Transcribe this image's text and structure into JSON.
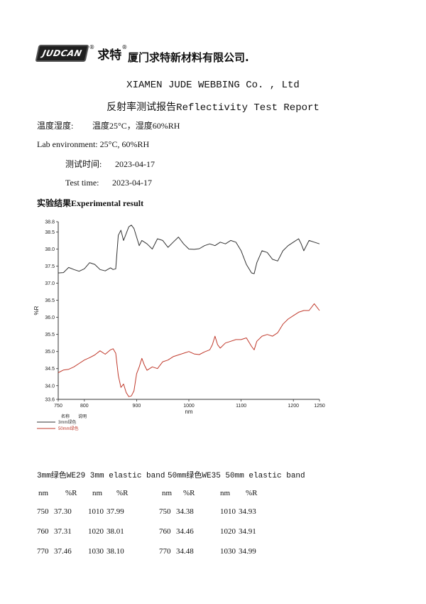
{
  "header": {
    "logo_text": "JUDCAN",
    "logo_cn": "求特",
    "company_cn": "厦门求特新材料有限公司.",
    "company_en": "XIAMEN JUDE WEBBING Co. , Ltd",
    "report_title": "反射率测试报告Reflectivity Test Report"
  },
  "info": {
    "env_cn_label": "温度湿度:",
    "env_cn_value": "温度25°C，湿度60%RH",
    "env_en": "Lab environment:  25°C, 60%RH",
    "date_cn_label": "测试时间:",
    "date_cn_value": "2023-04-17",
    "date_en_label": "Test time:",
    "date_en_value": "2023-04-17",
    "result_heading": "实验结果Experimental result"
  },
  "chart_data": {
    "type": "line",
    "xlabel": "nm",
    "ylabel": "%R",
    "xlim": [
      750,
      1250
    ],
    "ylim": [
      33.6,
      38.8
    ],
    "x_ticks": [
      "750",
      "800",
      "900",
      "1000",
      "1100",
      "1200",
      "1250"
    ],
    "y_ticks": [
      "33.6",
      "34.0",
      "34.5",
      "35.0",
      "35.5",
      "36.0",
      "36.5",
      "37.0",
      "37.5",
      "38.0",
      "38.5",
      "38.8"
    ],
    "legend_header": [
      "名称",
      "说明"
    ],
    "series": [
      {
        "name": "3mm绿色",
        "color": "#333333",
        "points": [
          [
            750,
            37.3
          ],
          [
            760,
            37.31
          ],
          [
            770,
            37.46
          ],
          [
            780,
            37.4
          ],
          [
            790,
            37.35
          ],
          [
            800,
            37.42
          ],
          [
            810,
            37.6
          ],
          [
            820,
            37.55
          ],
          [
            830,
            37.4
          ],
          [
            840,
            37.36
          ],
          [
            850,
            37.45
          ],
          [
            855,
            37.4
          ],
          [
            860,
            37.42
          ],
          [
            865,
            38.4
          ],
          [
            870,
            38.55
          ],
          [
            875,
            38.25
          ],
          [
            880,
            38.45
          ],
          [
            885,
            38.65
          ],
          [
            890,
            38.7
          ],
          [
            895,
            38.6
          ],
          [
            900,
            38.35
          ],
          [
            905,
            38.1
          ],
          [
            910,
            38.25
          ],
          [
            920,
            38.15
          ],
          [
            930,
            38.0
          ],
          [
            940,
            38.3
          ],
          [
            950,
            38.25
          ],
          [
            960,
            38.05
          ],
          [
            970,
            38.2
          ],
          [
            980,
            38.35
          ],
          [
            990,
            38.15
          ],
          [
            1000,
            38.0
          ],
          [
            1010,
            37.99
          ],
          [
            1020,
            38.01
          ],
          [
            1030,
            38.1
          ],
          [
            1040,
            38.15
          ],
          [
            1050,
            38.1
          ],
          [
            1060,
            38.2
          ],
          [
            1070,
            38.15
          ],
          [
            1080,
            38.25
          ],
          [
            1090,
            38.2
          ],
          [
            1100,
            37.95
          ],
          [
            1110,
            37.55
          ],
          [
            1120,
            37.3
          ],
          [
            1125,
            37.28
          ],
          [
            1130,
            37.6
          ],
          [
            1140,
            37.95
          ],
          [
            1150,
            37.9
          ],
          [
            1160,
            37.7
          ],
          [
            1170,
            37.65
          ],
          [
            1180,
            37.95
          ],
          [
            1190,
            38.1
          ],
          [
            1200,
            38.2
          ],
          [
            1210,
            38.3
          ],
          [
            1215,
            38.15
          ],
          [
            1220,
            37.95
          ],
          [
            1230,
            38.25
          ],
          [
            1240,
            38.2
          ],
          [
            1250,
            38.15
          ]
        ]
      },
      {
        "name": "50mm绿色",
        "color": "#c0392b",
        "points": [
          [
            750,
            34.38
          ],
          [
            760,
            34.46
          ],
          [
            770,
            34.48
          ],
          [
            780,
            34.55
          ],
          [
            790,
            34.65
          ],
          [
            800,
            34.75
          ],
          [
            810,
            34.82
          ],
          [
            820,
            34.9
          ],
          [
            830,
            35.02
          ],
          [
            840,
            34.92
          ],
          [
            850,
            35.05
          ],
          [
            855,
            35.08
          ],
          [
            860,
            34.95
          ],
          [
            865,
            34.3
          ],
          [
            870,
            33.95
          ],
          [
            875,
            34.05
          ],
          [
            880,
            33.8
          ],
          [
            885,
            33.68
          ],
          [
            890,
            33.7
          ],
          [
            895,
            33.85
          ],
          [
            900,
            34.35
          ],
          [
            905,
            34.55
          ],
          [
            910,
            34.8
          ],
          [
            915,
            34.6
          ],
          [
            920,
            34.45
          ],
          [
            930,
            34.55
          ],
          [
            940,
            34.5
          ],
          [
            950,
            34.7
          ],
          [
            960,
            34.75
          ],
          [
            970,
            34.85
          ],
          [
            980,
            34.9
          ],
          [
            990,
            34.95
          ],
          [
            1000,
            35.0
          ],
          [
            1010,
            34.93
          ],
          [
            1020,
            34.91
          ],
          [
            1030,
            34.99
          ],
          [
            1040,
            35.05
          ],
          [
            1045,
            35.2
          ],
          [
            1050,
            35.45
          ],
          [
            1055,
            35.2
          ],
          [
            1060,
            35.1
          ],
          [
            1070,
            35.25
          ],
          [
            1080,
            35.3
          ],
          [
            1090,
            35.35
          ],
          [
            1100,
            35.35
          ],
          [
            1110,
            35.4
          ],
          [
            1120,
            35.15
          ],
          [
            1125,
            35.05
          ],
          [
            1130,
            35.3
          ],
          [
            1140,
            35.45
          ],
          [
            1150,
            35.5
          ],
          [
            1160,
            35.45
          ],
          [
            1170,
            35.55
          ],
          [
            1180,
            35.8
          ],
          [
            1190,
            35.95
          ],
          [
            1200,
            36.05
          ],
          [
            1210,
            36.15
          ],
          [
            1220,
            36.2
          ],
          [
            1230,
            36.2
          ],
          [
            1240,
            36.4
          ],
          [
            1250,
            36.2
          ]
        ]
      }
    ]
  },
  "tables": {
    "heading_left": "3mm绿色WE29 3mm elastic band",
    "heading_right": "50mm绿色WE35 50mm elastic band",
    "col_nm": "nm",
    "col_r": "%R",
    "left_rows": [
      [
        "750",
        "37.30",
        "1010",
        "37.99"
      ],
      [
        "760",
        "37.31",
        "1020",
        "38.01"
      ],
      [
        "770",
        "37.46",
        "1030",
        "38.10"
      ]
    ],
    "right_rows": [
      [
        "750",
        "34.38",
        "1010",
        "34.93"
      ],
      [
        "760",
        "34.46",
        "1020",
        "34.91"
      ],
      [
        "770",
        "34.48",
        "1030",
        "34.99"
      ]
    ]
  }
}
